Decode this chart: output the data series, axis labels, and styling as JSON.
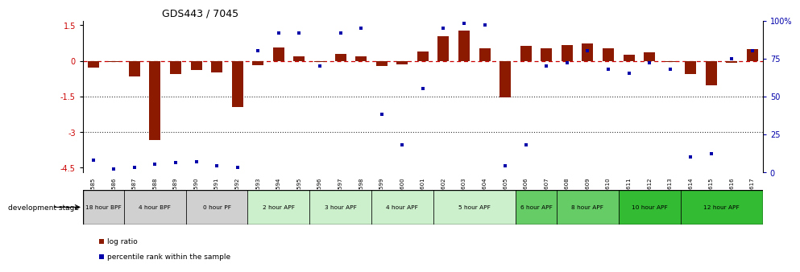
{
  "title": "GDS443 / 7045",
  "samples": [
    "GSM4585",
    "GSM4586",
    "GSM4587",
    "GSM4588",
    "GSM4589",
    "GSM4590",
    "GSM4591",
    "GSM4592",
    "GSM4593",
    "GSM4594",
    "GSM4595",
    "GSM4596",
    "GSM4597",
    "GSM4598",
    "GSM4599",
    "GSM4600",
    "GSM4601",
    "GSM4602",
    "GSM4603",
    "GSM4604",
    "GSM4605",
    "GSM4606",
    "GSM4607",
    "GSM4608",
    "GSM4609",
    "GSM4610",
    "GSM4611",
    "GSM4612",
    "GSM4613",
    "GSM4614",
    "GSM4615",
    "GSM4616",
    "GSM4617"
  ],
  "log_ratios": [
    -0.3,
    -0.05,
    -0.65,
    -3.35,
    -0.55,
    -0.38,
    -0.5,
    -1.95,
    -0.18,
    0.55,
    0.18,
    -0.05,
    0.28,
    0.18,
    -0.22,
    -0.15,
    0.38,
    1.05,
    1.28,
    0.52,
    -1.55,
    0.62,
    0.52,
    0.68,
    0.75,
    0.52,
    0.25,
    0.35,
    -0.05,
    -0.55,
    -1.05,
    -0.08,
    0.48
  ],
  "percentile_ranks": [
    8,
    2,
    3,
    5,
    6,
    7,
    4,
    3,
    80,
    92,
    92,
    70,
    92,
    95,
    38,
    18,
    55,
    95,
    98,
    97,
    4,
    18,
    70,
    72,
    80,
    68,
    65,
    72,
    68,
    10,
    12,
    75,
    80
  ],
  "stage_groups": [
    {
      "label": "18 hour BPF",
      "start": 0,
      "end": 2,
      "color": "#d0d0d0"
    },
    {
      "label": "4 hour BPF",
      "start": 2,
      "end": 5,
      "color": "#d0d0d0"
    },
    {
      "label": "0 hour PF",
      "start": 5,
      "end": 8,
      "color": "#d0d0d0"
    },
    {
      "label": "2 hour APF",
      "start": 8,
      "end": 11,
      "color": "#ccf0cc"
    },
    {
      "label": "3 hour APF",
      "start": 11,
      "end": 14,
      "color": "#ccf0cc"
    },
    {
      "label": "4 hour APF",
      "start": 14,
      "end": 17,
      "color": "#ccf0cc"
    },
    {
      "label": "5 hour APF",
      "start": 17,
      "end": 21,
      "color": "#ccf0cc"
    },
    {
      "label": "6 hour APF",
      "start": 21,
      "end": 23,
      "color": "#66cc66"
    },
    {
      "label": "8 hour APF",
      "start": 23,
      "end": 26,
      "color": "#66cc66"
    },
    {
      "label": "10 hour APF",
      "start": 26,
      "end": 29,
      "color": "#33bb33"
    },
    {
      "label": "12 hour APF",
      "start": 29,
      "end": 33,
      "color": "#33bb33"
    }
  ],
  "bar_color": "#8B1A00",
  "square_color": "#0000AA",
  "dashed_line_color": "#CC0000",
  "dotted_line_color": "#333333",
  "ylim_left": [
    -4.7,
    1.7
  ],
  "ylim_right": [
    0,
    100
  ],
  "yticks_left": [
    1.5,
    0.0,
    -1.5,
    -3.0,
    -4.5
  ],
  "yticks_right": [
    100,
    75,
    50,
    25,
    0
  ],
  "legend_items": [
    {
      "label": "log ratio",
      "color": "#8B1A00"
    },
    {
      "label": "percentile rank within the sample",
      "color": "#0000AA"
    }
  ]
}
